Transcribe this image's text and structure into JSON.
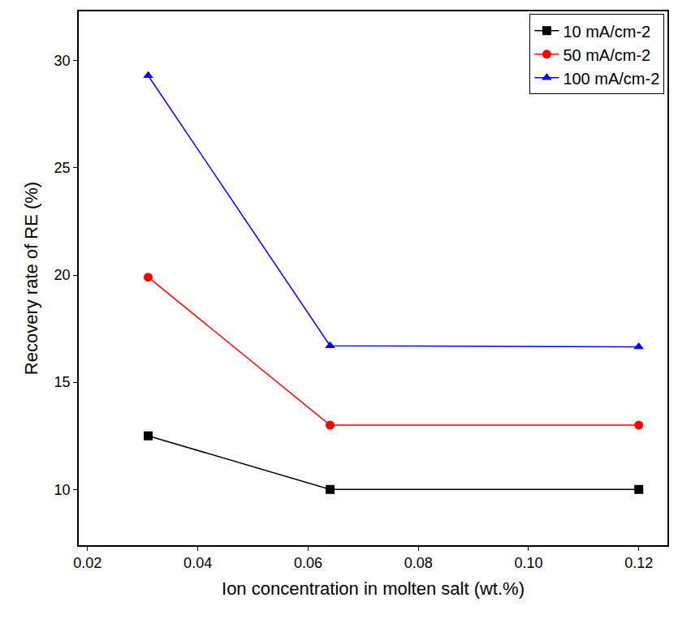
{
  "chart_data": {
    "type": "line",
    "x_label": "Ion concentration in molten salt (wt.%)",
    "y_label": "Recovery rate of RE (%)",
    "x": [
      0.031,
      0.064,
      0.12
    ],
    "series": [
      {
        "name": "10 mA/cm-2",
        "color": "#000000",
        "marker": "square",
        "values": [
          12.5,
          10.0,
          10.0
        ]
      },
      {
        "name": "50 mA/cm-2",
        "color": "#ff0000",
        "marker": "circle",
        "values": [
          19.9,
          13.0,
          13.0
        ]
      },
      {
        "name": "100 mA/cm-2",
        "color": "#0000ff",
        "marker": "triangle-up",
        "values": [
          29.3,
          16.7,
          16.65
        ]
      }
    ],
    "xlim": [
      0.0184,
      0.1252
    ],
    "xticks": [
      0.02,
      0.04,
      0.06,
      0.08,
      {
        "value": 0.1,
        "label": "0.10"
      },
      0.12
    ],
    "ylim": [
      7.4,
      32.3
    ],
    "yticks": [
      10,
      15,
      20,
      25,
      30
    ],
    "grid": false,
    "legend": "top right"
  }
}
